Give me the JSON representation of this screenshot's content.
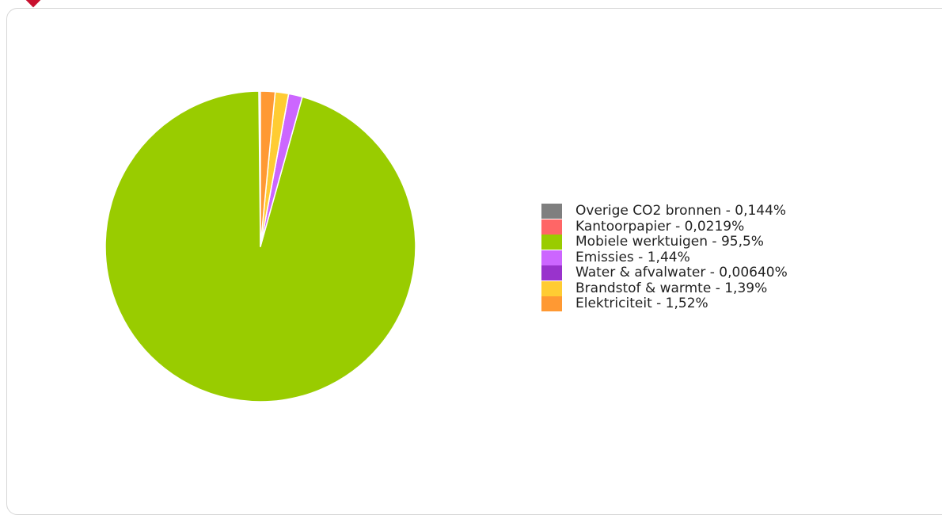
{
  "chart_data": {
    "type": "pie",
    "title": "",
    "slices": [
      {
        "label": "Overige CO2 bronnen - 0,144%",
        "name": "Overige CO2 bronnen",
        "value": 0.144,
        "color": "#7f7f7f"
      },
      {
        "label": "Kantoorpapier - 0,0219%",
        "name": "Kantoorpapier",
        "value": 0.0219,
        "color": "#ff6666"
      },
      {
        "label": "Mobiele werktuigen - 95,5%",
        "name": "Mobiele werktuigen",
        "value": 95.5,
        "color": "#99cc00"
      },
      {
        "label": "Emissies - 1,44%",
        "name": "Emissies",
        "value": 1.44,
        "color": "#cc66ff"
      },
      {
        "label": "Water & afvalwater - 0,00640%",
        "name": "Water & afvalwater",
        "value": 0.0064,
        "color": "#9933cc"
      },
      {
        "label": "Brandstof & warmte - 1,39%",
        "name": "Brandstof & warmte",
        "value": 1.39,
        "color": "#ffcc33"
      },
      {
        "label": "Elektriciteit - 1,52%",
        "name": "Elektriciteit",
        "value": 1.52,
        "color": "#ff9933"
      }
    ],
    "legend_position": "right",
    "slice_order": "counterclockwise"
  }
}
